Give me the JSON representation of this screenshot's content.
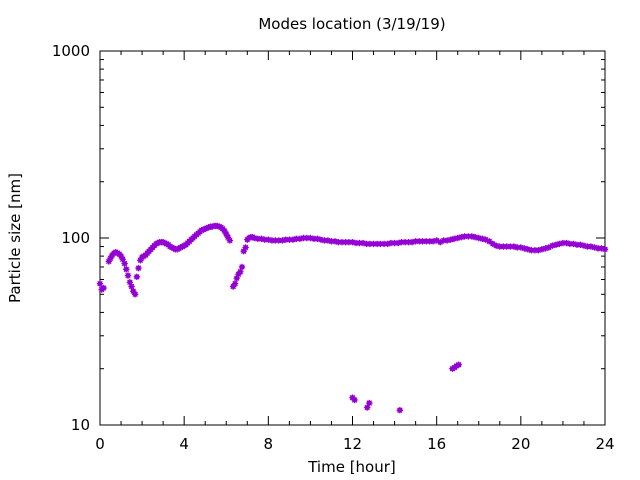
{
  "chart_data": {
    "type": "scatter",
    "title": "Modes location (3/19/19)",
    "xlabel": "Time [hour]",
    "ylabel": "Particle size [nm]",
    "xlim": [
      0,
      24
    ],
    "ylim": [
      10,
      1000
    ],
    "yscale": "log",
    "x_ticks": [
      "0",
      "4",
      "8",
      "12",
      "16",
      "20",
      "24"
    ],
    "y_ticks": [
      "10",
      "100",
      "1000"
    ],
    "grid": false,
    "legend": "none",
    "marker_color": "#9400D3",
    "series": [
      {
        "points": [
          [
            0.0,
            57
          ],
          [
            0.08,
            53
          ],
          [
            0.17,
            54
          ],
          [
            0.42,
            75
          ],
          [
            0.5,
            78
          ],
          [
            0.58,
            81
          ],
          [
            0.67,
            83
          ],
          [
            0.75,
            84
          ],
          [
            0.83,
            83
          ],
          [
            0.92,
            82
          ],
          [
            1.0,
            80
          ],
          [
            1.08,
            77
          ],
          [
            1.17,
            73
          ],
          [
            1.25,
            68
          ],
          [
            1.33,
            63
          ],
          [
            1.42,
            58
          ],
          [
            1.5,
            55
          ],
          [
            1.58,
            52
          ],
          [
            1.67,
            50
          ],
          [
            1.75,
            62
          ],
          [
            1.83,
            69
          ],
          [
            1.92,
            76
          ],
          [
            2.0,
            79
          ],
          [
            2.08,
            80
          ],
          [
            2.17,
            81
          ],
          [
            2.25,
            83
          ],
          [
            2.33,
            85
          ],
          [
            2.42,
            87
          ],
          [
            2.5,
            89
          ],
          [
            2.58,
            91
          ],
          [
            2.67,
            93
          ],
          [
            2.75,
            94
          ],
          [
            2.83,
            95
          ],
          [
            2.92,
            95
          ],
          [
            3.0,
            95
          ],
          [
            3.08,
            94
          ],
          [
            3.17,
            93
          ],
          [
            3.25,
            92
          ],
          [
            3.33,
            90
          ],
          [
            3.42,
            89
          ],
          [
            3.5,
            88
          ],
          [
            3.58,
            87
          ],
          [
            3.67,
            87
          ],
          [
            3.75,
            88
          ],
          [
            3.83,
            89
          ],
          [
            3.92,
            90
          ],
          [
            4.0,
            91
          ],
          [
            4.08,
            92
          ],
          [
            4.17,
            94
          ],
          [
            4.25,
            96
          ],
          [
            4.33,
            98
          ],
          [
            4.42,
            100
          ],
          [
            4.5,
            102
          ],
          [
            4.58,
            104
          ],
          [
            4.67,
            106
          ],
          [
            4.75,
            108
          ],
          [
            4.83,
            110
          ],
          [
            4.92,
            111
          ],
          [
            5.0,
            112
          ],
          [
            5.08,
            113
          ],
          [
            5.17,
            114
          ],
          [
            5.25,
            115
          ],
          [
            5.33,
            115
          ],
          [
            5.42,
            116
          ],
          [
            5.5,
            116
          ],
          [
            5.58,
            116
          ],
          [
            5.67,
            115
          ],
          [
            5.75,
            114
          ],
          [
            5.83,
            112
          ],
          [
            5.92,
            109
          ],
          [
            6.0,
            105
          ],
          [
            6.08,
            101
          ],
          [
            6.17,
            97
          ],
          [
            6.33,
            55
          ],
          [
            6.42,
            57
          ],
          [
            6.5,
            61
          ],
          [
            6.58,
            64
          ],
          [
            6.67,
            66
          ],
          [
            6.75,
            70
          ],
          [
            6.83,
            85
          ],
          [
            6.92,
            89
          ],
          [
            7.0,
            98
          ],
          [
            7.08,
            100
          ],
          [
            7.17,
            101
          ],
          [
            7.25,
            101
          ],
          [
            7.33,
            100
          ],
          [
            7.5,
            99
          ],
          [
            7.67,
            99
          ],
          [
            7.83,
            98
          ],
          [
            8.0,
            98
          ],
          [
            8.17,
            97
          ],
          [
            8.33,
            97
          ],
          [
            8.5,
            97
          ],
          [
            8.67,
            97
          ],
          [
            8.83,
            98
          ],
          [
            9.0,
            98
          ],
          [
            9.17,
            98
          ],
          [
            9.33,
            99
          ],
          [
            9.5,
            99
          ],
          [
            9.67,
            100
          ],
          [
            9.83,
            100
          ],
          [
            10.0,
            100
          ],
          [
            10.17,
            99
          ],
          [
            10.33,
            99
          ],
          [
            10.5,
            98
          ],
          [
            10.67,
            97
          ],
          [
            10.83,
            97
          ],
          [
            11.0,
            96
          ],
          [
            11.17,
            96
          ],
          [
            11.33,
            95
          ],
          [
            11.5,
            95
          ],
          [
            11.67,
            95
          ],
          [
            11.83,
            95
          ],
          [
            12.0,
            95
          ],
          [
            12.17,
            94
          ],
          [
            12.33,
            94
          ],
          [
            12.5,
            94
          ],
          [
            12.67,
            93
          ],
          [
            12.83,
            93
          ],
          [
            13.0,
            93
          ],
          [
            13.17,
            93
          ],
          [
            13.33,
            93
          ],
          [
            13.5,
            93
          ],
          [
            13.67,
            93
          ],
          [
            13.83,
            94
          ],
          [
            14.0,
            94
          ],
          [
            14.17,
            94
          ],
          [
            14.33,
            95
          ],
          [
            14.5,
            95
          ],
          [
            14.67,
            95
          ],
          [
            14.83,
            95
          ],
          [
            15.0,
            96
          ],
          [
            15.17,
            96
          ],
          [
            15.33,
            96
          ],
          [
            15.5,
            96
          ],
          [
            15.67,
            96
          ],
          [
            15.83,
            96
          ],
          [
            16.0,
            97
          ],
          [
            16.17,
            95
          ],
          [
            16.33,
            97
          ],
          [
            16.5,
            97
          ],
          [
            16.67,
            98
          ],
          [
            16.83,
            99
          ],
          [
            17.0,
            100
          ],
          [
            17.17,
            101
          ],
          [
            17.33,
            102
          ],
          [
            17.5,
            102
          ],
          [
            17.67,
            102
          ],
          [
            17.83,
            101
          ],
          [
            18.0,
            100
          ],
          [
            18.17,
            99
          ],
          [
            18.33,
            98
          ],
          [
            18.5,
            96
          ],
          [
            18.67,
            93
          ],
          [
            18.83,
            91
          ],
          [
            19.0,
            90
          ],
          [
            19.17,
            90
          ],
          [
            19.33,
            90
          ],
          [
            19.5,
            90
          ],
          [
            19.67,
            90
          ],
          [
            19.83,
            89
          ],
          [
            20.0,
            89
          ],
          [
            20.17,
            88
          ],
          [
            20.33,
            87
          ],
          [
            20.5,
            86
          ],
          [
            20.67,
            86
          ],
          [
            20.83,
            86
          ],
          [
            21.0,
            87
          ],
          [
            21.17,
            88
          ],
          [
            21.33,
            89
          ],
          [
            21.5,
            91
          ],
          [
            21.67,
            92
          ],
          [
            21.83,
            93
          ],
          [
            22.0,
            94
          ],
          [
            22.17,
            94
          ],
          [
            22.33,
            93
          ],
          [
            22.5,
            93
          ],
          [
            22.67,
            92
          ],
          [
            22.83,
            92
          ],
          [
            23.0,
            91
          ],
          [
            23.17,
            90
          ],
          [
            23.33,
            90
          ],
          [
            23.5,
            89
          ],
          [
            23.67,
            88
          ],
          [
            23.83,
            88
          ],
          [
            24.0,
            87
          ],
          [
            12.0,
            14.0
          ],
          [
            12.1,
            13.6
          ],
          [
            12.7,
            12.4
          ],
          [
            12.8,
            13.1
          ],
          [
            14.25,
            12.0
          ],
          [
            16.75,
            20.0
          ],
          [
            16.85,
            20.3
          ],
          [
            16.95,
            20.7
          ],
          [
            17.05,
            21.0
          ]
        ]
      }
    ]
  }
}
